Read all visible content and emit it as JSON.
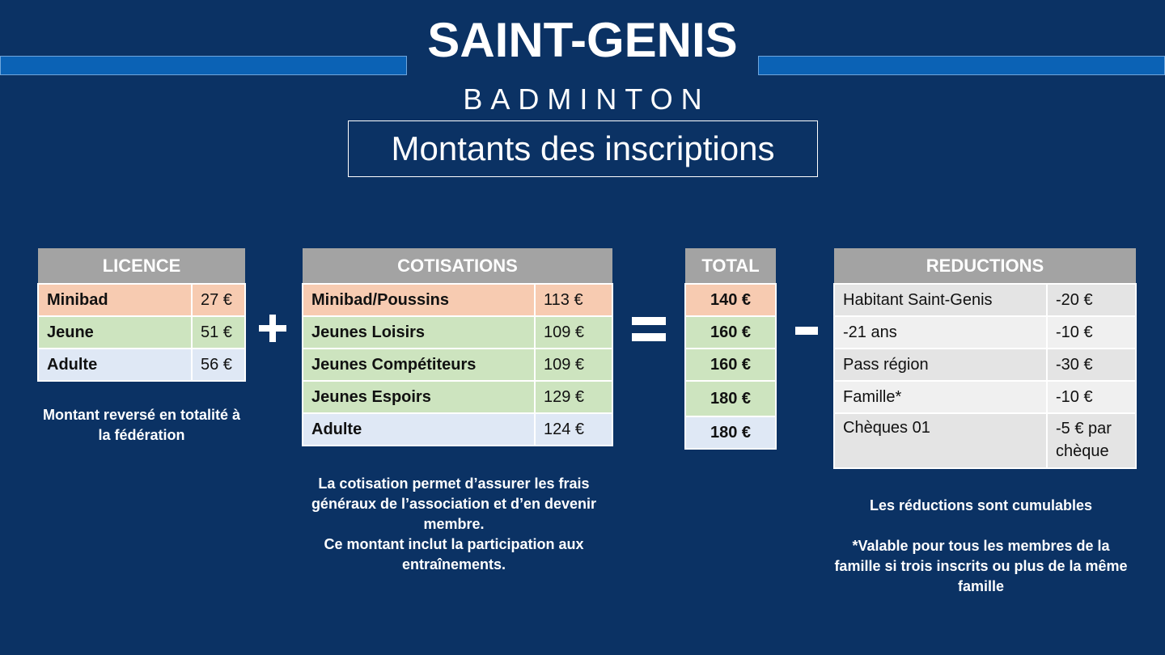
{
  "header": {
    "brand": "SAINT-GENIS",
    "subbrand": "BADMINTON",
    "title": "Montants des inscriptions"
  },
  "licence": {
    "header": "LICENCE",
    "rows": [
      {
        "label": "Minibad",
        "value": "27 €"
      },
      {
        "label": "Jeune",
        "value": "51 €"
      },
      {
        "label": "Adulte",
        "value": "56 €"
      }
    ],
    "note": "Montant reversé en totalité à la fédération"
  },
  "operators": {
    "plus": "+",
    "equals": "=",
    "minus": "-"
  },
  "cotisations": {
    "header": "COTISATIONS",
    "rows": [
      {
        "label": "Minibad/Poussins",
        "value": "113 €"
      },
      {
        "label": "Jeunes Loisirs",
        "value": "109 €"
      },
      {
        "label": "Jeunes Compétiteurs",
        "value": "109 €"
      },
      {
        "label": "Jeunes Espoirs",
        "value": "129 €"
      },
      {
        "label": "Adulte",
        "value": "124 €"
      }
    ],
    "note_line1": "La cotisation permet d’assurer les frais généraux de l’association et d’en devenir membre.",
    "note_line2": "Ce montant inclut la participation aux entraînements."
  },
  "total": {
    "header": "TOTAL",
    "rows": [
      "140 €",
      "160 €",
      "160 €",
      "180 €",
      "180 €"
    ]
  },
  "reductions": {
    "header": "REDUCTIONS",
    "rows": [
      {
        "label": "Habitant Saint-Genis",
        "value": "-20 €"
      },
      {
        "label": "-21 ans",
        "value": "-10 €"
      },
      {
        "label": "Pass région",
        "value": "-30 €"
      },
      {
        "label": "Famille*",
        "value": "-10 €"
      },
      {
        "label": "Chèques 01",
        "value": "-5 € par chèque"
      }
    ],
    "note_cumul": "Les réductions sont cumulables",
    "note_famille": "*Valable pour tous les membres de la famille si trois inscrits ou plus de la même famille"
  },
  "colors": {
    "background": "#0b3264",
    "stripe": "#0b62b5",
    "header_grey": "#a3a3a3",
    "row_orange": "#f7cbb1",
    "row_green": "#cde4bf",
    "row_blue": "#dfe8f5"
  }
}
